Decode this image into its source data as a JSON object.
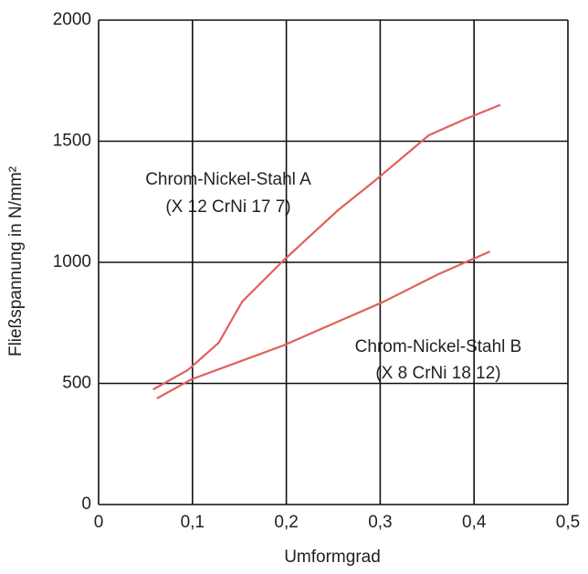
{
  "chart_data": {
    "type": "line",
    "x_label": "Umformgrad",
    "y_label": "Fließspannung in N/mm²",
    "xlim": [
      0,
      0.5
    ],
    "ylim": [
      0,
      2000
    ],
    "xticks": [
      0,
      {
        "value": 0.1,
        "label": "0,1"
      },
      {
        "value": 0.2,
        "label": "0,2"
      },
      {
        "value": 0.3,
        "label": "0,3"
      },
      {
        "value": 0.4,
        "label": "0,4"
      },
      {
        "value": 0.5,
        "label": "0,5"
      }
    ],
    "yticks": [
      0,
      500,
      1000,
      1500,
      2000
    ],
    "grid": true,
    "series": [
      {
        "name": "Chrom-Nickel-Stahl A",
        "designation": "(X 12 CrNi 17 7)",
        "color": "#e0605a",
        "x": [
          0.058,
          0.095,
          0.128,
          0.153,
          0.197,
          0.255,
          0.294,
          0.352,
          0.391,
          0.428
        ],
        "values": [
          475,
          555,
          668,
          838,
          1008,
          1215,
          1336,
          1525,
          1592,
          1650
        ]
      },
      {
        "name": "Chrom-Nickel-Stahl B",
        "designation": "(X 8 CrNi 18 12)",
        "color": "#e0605a",
        "x": [
          0.062,
          0.099,
          0.197,
          0.304,
          0.362,
          0.417
        ],
        "values": [
          438,
          517,
          657,
          838,
          951,
          1045
        ]
      }
    ]
  }
}
